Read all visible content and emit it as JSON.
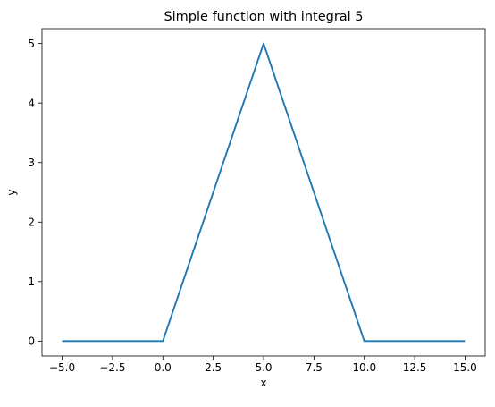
{
  "chart_data": {
    "type": "line",
    "title": "Simple function with integral 5",
    "xlabel": "x",
    "ylabel": "y",
    "xlim": [
      -6.0,
      16.0
    ],
    "ylim": [
      -0.25,
      5.25
    ],
    "xticks": [
      -5.0,
      -2.5,
      0.0,
      2.5,
      5.0,
      7.5,
      10.0,
      12.5,
      15.0
    ],
    "xtick_labels": [
      "−5.0",
      "−2.5",
      "0.0",
      "2.5",
      "5.0",
      "7.5",
      "10.0",
      "12.5",
      "15.0"
    ],
    "yticks": [
      0,
      1,
      2,
      3,
      4,
      5
    ],
    "ytick_labels": [
      "0",
      "1",
      "2",
      "3",
      "4",
      "5"
    ],
    "grid": false,
    "series": [
      {
        "color": "#1f77b4",
        "x": [
          -5,
          0,
          5,
          10,
          15
        ],
        "y": [
          0,
          0,
          5,
          0,
          0
        ]
      }
    ]
  }
}
